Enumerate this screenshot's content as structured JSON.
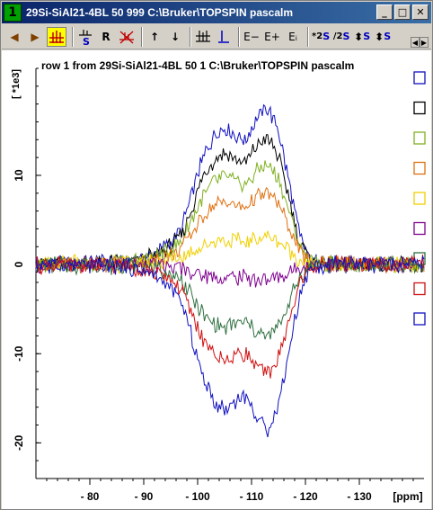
{
  "window": {
    "number": "1",
    "title": "29Si-SiAl21-4BL  50  999  C:\\Bruker\\TOPSPIN  pascalm",
    "minimize_glyph": "_",
    "maximize_glyph": "□",
    "close_glyph": "✕"
  },
  "toolbar": {
    "items": [
      {
        "name": "arrow-left-icon",
        "label": "◀"
      },
      {
        "name": "arrow-right-icon",
        "label": "▶"
      },
      {
        "name": "multi-display-icon",
        "label": ""
      },
      {
        "name": "scale-icon",
        "label": ""
      },
      {
        "name": "reset-button",
        "label": "R"
      },
      {
        "name": "remove-spectrum-icon",
        "label": ""
      },
      {
        "name": "arrow-up-icon",
        "label": "↑"
      },
      {
        "name": "arrow-down-icon",
        "label": "↓"
      },
      {
        "name": "align-icon",
        "label": ""
      },
      {
        "name": "baseline-icon",
        "label": ""
      },
      {
        "name": "exp-minus-button",
        "label": "E−"
      },
      {
        "name": "exp-plus-button",
        "label": "E+"
      },
      {
        "name": "exp-i-button",
        "label": "Eᵢ"
      },
      {
        "name": "scale-x2-button",
        "label": "*2"
      },
      {
        "name": "scale-div2-button",
        "label": "/2"
      },
      {
        "name": "shift-updown-button",
        "label": "⬍"
      },
      {
        "name": "shift-updown2-button",
        "label": "⬍"
      }
    ],
    "sub_s": "S"
  },
  "plot": {
    "title": "row 1 from 29Si-SiAl21-4BL  50  1  C:\\Bruker\\TOPSPIN  pascalm",
    "y_multiplier": "[ *1e3]",
    "x_unit": "[ppm]"
  },
  "colors": {
    "series": [
      "#1010c0",
      "#000000",
      "#80b020",
      "#e07010",
      "#f0d000",
      "#800090",
      "#307040",
      "#d01010",
      "#1010c0"
    ]
  },
  "chart_data": {
    "type": "line",
    "title": "row 1 from 29Si-SiAl21-4BL  50  1  C:\\Bruker\\TOPSPIN  pascalm",
    "xlabel": "[ppm]",
    "ylabel": "[ *1e3]",
    "xlim": [
      -70,
      -142
    ],
    "ylim": [
      -24,
      22
    ],
    "xticks": [
      -80,
      -90,
      -100,
      -110,
      -120,
      -130
    ],
    "xtick_labels": [
      "- 80",
      "- 90",
      "- 100",
      "- 110",
      "- 120",
      "- 130"
    ],
    "yticks": [
      -20,
      -10,
      0,
      10
    ],
    "ytick_labels": [
      "-20",
      "-10",
      "0",
      "10"
    ],
    "series": [
      {
        "amp": 1.0,
        "color": "#1010c0"
      },
      {
        "amp": 0.81,
        "color": "#000000"
      },
      {
        "amp": 0.64,
        "color": "#80b020"
      },
      {
        "amp": 0.46,
        "color": "#e07010"
      },
      {
        "amp": 0.18,
        "color": "#f0d000"
      },
      {
        "amp": -0.1,
        "color": "#800090"
      },
      {
        "amp": -0.46,
        "color": "#307040"
      },
      {
        "amp": -0.7,
        "color": "#d01010"
      },
      {
        "amp": -1.05,
        "color": "#1010c0"
      }
    ],
    "base_shape": {
      "x": [
        -70,
        -88,
        -92,
        -95,
        -97,
        -99,
        -101,
        -103,
        -105,
        -107,
        -109,
        -111,
        -113,
        -115,
        -117,
        -119,
        -121,
        -125,
        -142
      ],
      "y": [
        0,
        0.3,
        1.2,
        2.5,
        4.0,
        8.0,
        12.0,
        14.5,
        15.5,
        14.5,
        14.0,
        16.5,
        17.5,
        15.0,
        9.0,
        3.0,
        0.3,
        0,
        0
      ]
    },
    "grid": false,
    "legend": "right"
  }
}
